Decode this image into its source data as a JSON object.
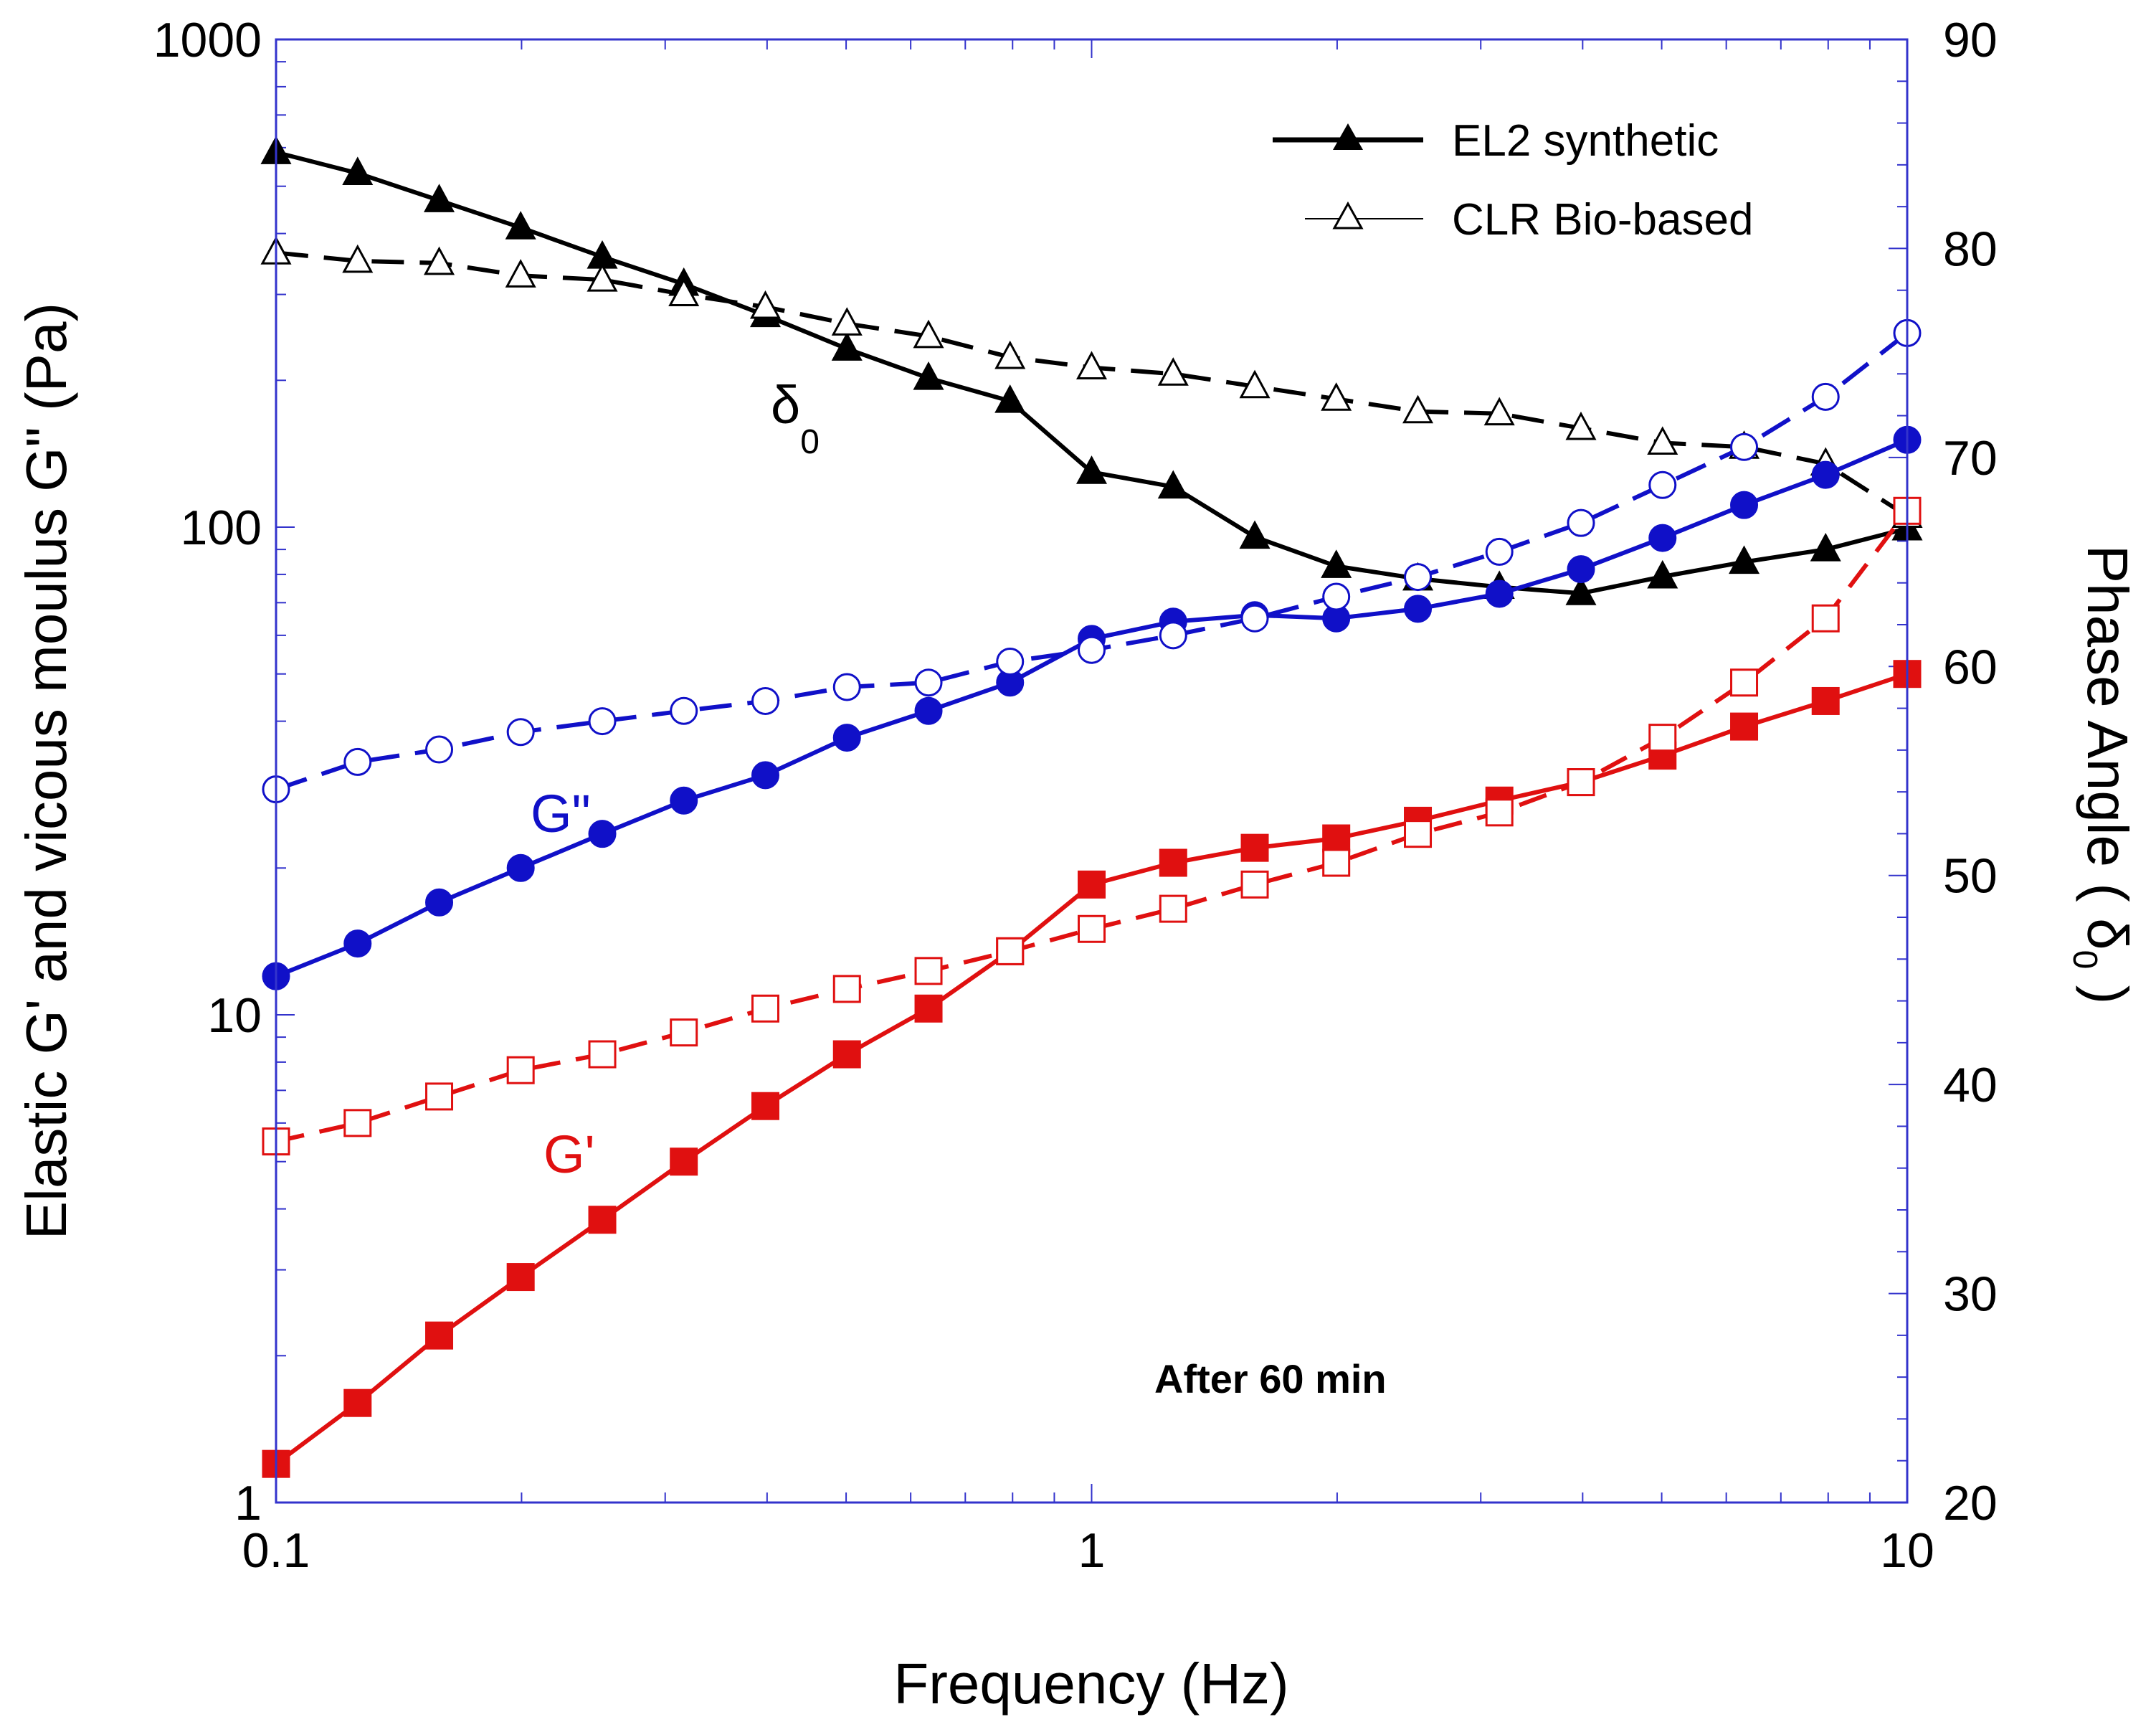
{
  "chart_data": {
    "type": "line",
    "title": "",
    "xlabel": "Frequency (Hz)",
    "ylabel": "Elastic G' and vicous moulus G\" (Pa)",
    "y2label": "Phase Angle ( δ",
    "y2label_sub": "0",
    "y2label_end": " )",
    "xscale": "log",
    "yscale": "log",
    "xlim": [
      0.1,
      10
    ],
    "ylim": [
      1,
      1000
    ],
    "y2lim": [
      20,
      90
    ],
    "x_ticks": [
      0.1,
      1,
      10
    ],
    "x_tick_labels": [
      "0.1",
      "1",
      "10"
    ],
    "y_ticks": [
      1,
      10,
      100,
      1000
    ],
    "y_tick_labels": [
      "1",
      "10",
      "100",
      "1000"
    ],
    "y2_ticks": [
      20,
      30,
      40,
      50,
      60,
      70,
      80,
      90
    ],
    "y2_tick_labels": [
      "20",
      "30",
      "40",
      "50",
      "60",
      "70",
      "80",
      "90"
    ],
    "legend": {
      "position": "top-right",
      "entries": [
        "EL2 synthetic",
        "CLR Bio-based"
      ]
    },
    "annotations": [
      {
        "text": "δ",
        "sub": "0",
        "color": "#000000"
      },
      {
        "text": "G\"",
        "color": "#1010c8"
      },
      {
        "text": "G'",
        "color": "#e01010"
      },
      {
        "text": "After 60 min",
        "color": "#000000"
      }
    ],
    "x": [
      0.1,
      0.1259,
      0.1585,
      0.1995,
      0.2512,
      0.3162,
      0.3981,
      0.5012,
      0.631,
      0.7943,
      1.0,
      1.259,
      1.585,
      1.995,
      2.512,
      3.162,
      3.981,
      5.012,
      6.31,
      7.943,
      10.0
    ],
    "series": [
      {
        "name": "EL2 synthetic",
        "variable": "phase angle",
        "axis": "right",
        "color": "#000000",
        "marker": "triangle-filled",
        "values": [
          84.6,
          83.6,
          82.3,
          81.0,
          79.6,
          78.3,
          76.8,
          75.2,
          73.8,
          72.7,
          69.3,
          68.6,
          66.2,
          64.8,
          64.2,
          63.8,
          63.5,
          64.3,
          65.0,
          65.6,
          66.6
        ]
      },
      {
        "name": "CLR Bio-based",
        "variable": "phase angle",
        "axis": "right",
        "color": "#000000",
        "marker": "triangle-open",
        "values": [
          79.8,
          79.4,
          79.3,
          78.7,
          78.5,
          77.8,
          77.2,
          76.4,
          75.8,
          74.8,
          74.3,
          74.0,
          73.4,
          72.8,
          72.2,
          72.1,
          71.4,
          70.7,
          70.5,
          69.7,
          67.2
        ]
      },
      {
        "name": "EL2 synthetic G\"",
        "variable": "G\"",
        "axis": "left",
        "color": "#1010c8",
        "marker": "circle-filled",
        "values": [
          12.0,
          14.0,
          17.0,
          20.0,
          23.5,
          27.5,
          31.0,
          37.0,
          42.0,
          48.0,
          59.0,
          64.0,
          66.0,
          65.0,
          68.0,
          73.0,
          82.0,
          95.0,
          111.0,
          128.0,
          151.0
        ]
      },
      {
        "name": "CLR Bio-based G\"",
        "variable": "G\"",
        "axis": "left",
        "color": "#1010c8",
        "marker": "circle-open",
        "values": [
          29.0,
          33.0,
          35.0,
          38.0,
          40.0,
          42.0,
          44.0,
          47.0,
          48.0,
          53.0,
          56.0,
          60.0,
          65.0,
          72.0,
          79.0,
          89.0,
          102.0,
          122.0,
          146.0,
          185.0,
          250.0
        ]
      },
      {
        "name": "EL2 synthetic G'",
        "variable": "G'",
        "axis": "left",
        "color": "#e01010",
        "marker": "square-filled",
        "values": [
          1.2,
          1.6,
          2.2,
          2.9,
          3.8,
          5.0,
          6.5,
          8.3,
          10.3,
          13.5,
          18.5,
          20.5,
          22.0,
          23.0,
          25.0,
          27.5,
          30.0,
          34.0,
          39.0,
          44.0,
          50.0
        ]
      },
      {
        "name": "CLR Bio-based G'",
        "variable": "G'",
        "axis": "left",
        "color": "#e01010",
        "marker": "square-open",
        "values": [
          5.5,
          6.0,
          6.8,
          7.7,
          8.3,
          9.2,
          10.3,
          11.3,
          12.3,
          13.5,
          15.0,
          16.5,
          18.5,
          20.5,
          23.5,
          26.0,
          30.0,
          37.0,
          48.0,
          65.0,
          108.0
        ]
      }
    ]
  }
}
